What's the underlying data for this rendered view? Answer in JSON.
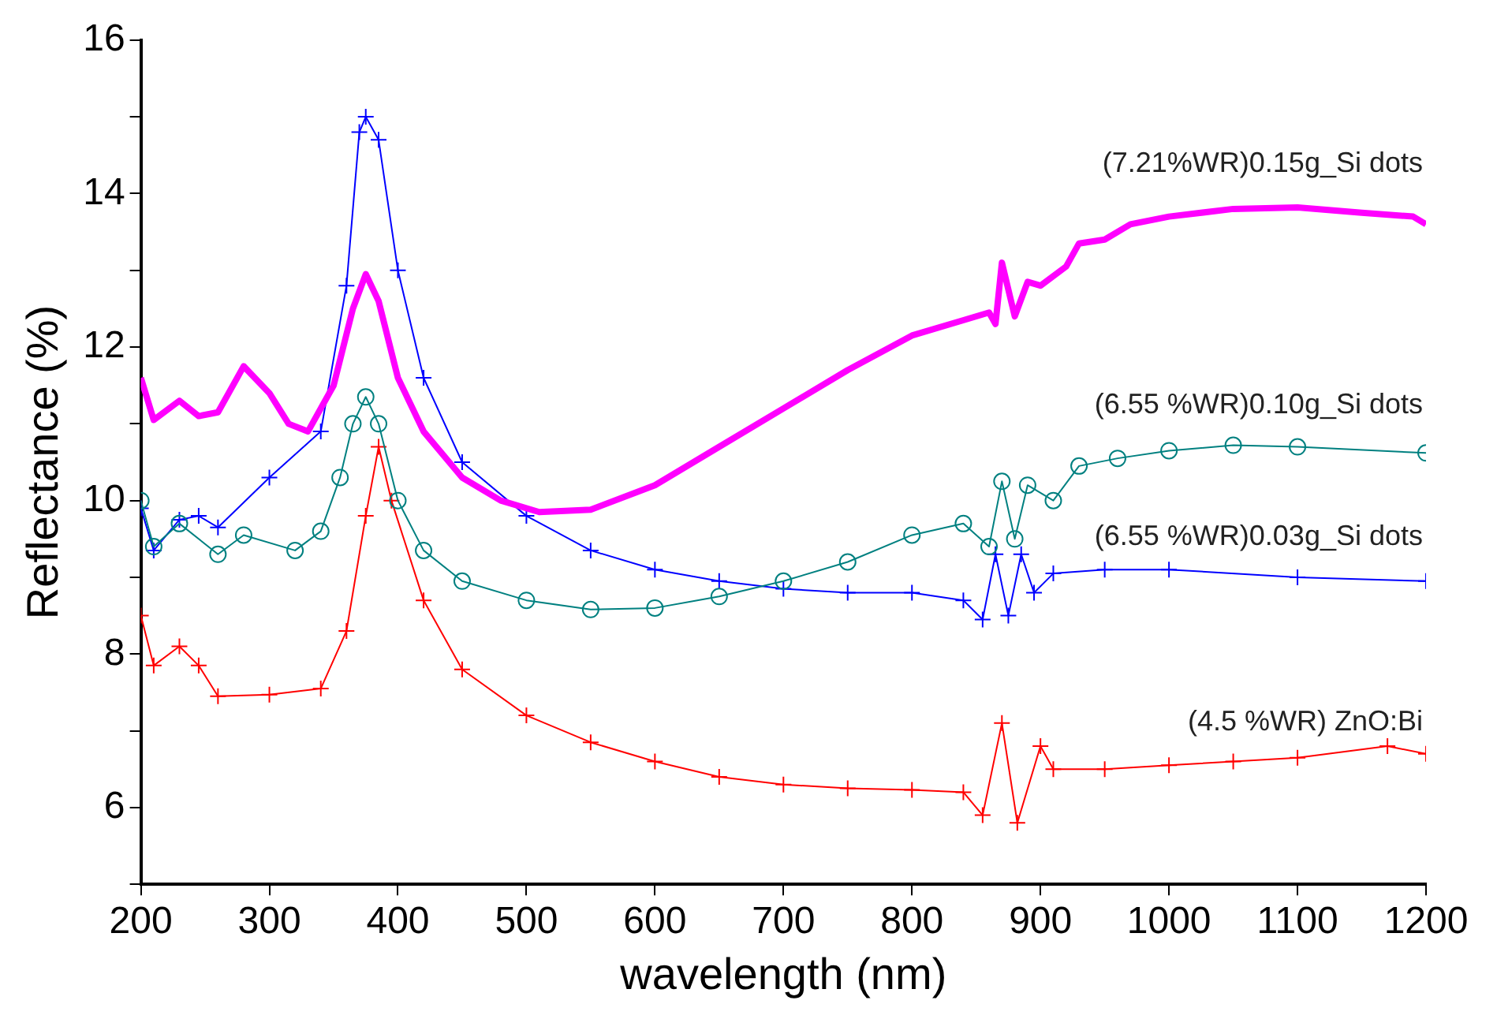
{
  "chart_data": {
    "type": "line",
    "xlabel": "wavelength (nm)",
    "ylabel": "Reflectance (%)",
    "xlim": [
      200,
      1200
    ],
    "xticks": [
      200,
      300,
      400,
      500,
      600,
      700,
      800,
      900,
      1000,
      1100,
      1200
    ],
    "ylim": [
      5,
      16
    ],
    "yticks": [
      {
        "value": 5,
        "label": null
      },
      6,
      {
        "value": 7,
        "label": null
      },
      8,
      {
        "value": 9,
        "label": null
      },
      10,
      {
        "value": 11,
        "label": null
      },
      12,
      {
        "value": 13,
        "label": null
      },
      14,
      {
        "value": 15,
        "label": null
      },
      16
    ],
    "grid": false,
    "legend": false,
    "series": [
      {
        "name": "(7.21%WR)0.15g_Si dots",
        "color": "#ff00ff",
        "marker": "none",
        "x": [
          200,
          210,
          230,
          245,
          260,
          280,
          300,
          315,
          330,
          350,
          365,
          375,
          385,
          400,
          420,
          450,
          480,
          510,
          550,
          600,
          650,
          700,
          750,
          800,
          840,
          860,
          865,
          870,
          880,
          890,
          900,
          920,
          930,
          950,
          970,
          1000,
          1050,
          1100,
          1150,
          1190,
          1200
        ],
        "values": [
          11.6,
          11.05,
          11.3,
          11.1,
          11.15,
          11.75,
          11.4,
          11.0,
          10.9,
          11.5,
          12.5,
          12.95,
          12.6,
          11.6,
          10.9,
          10.3,
          10.0,
          9.85,
          9.88,
          10.2,
          10.7,
          11.2,
          11.7,
          12.15,
          12.35,
          12.45,
          12.3,
          13.1,
          12.4,
          12.85,
          12.8,
          13.05,
          13.35,
          13.4,
          13.6,
          13.7,
          13.8,
          13.82,
          13.75,
          13.7,
          13.6
        ]
      },
      {
        "name": "(6.55 %WR)0.10g_Si dots",
        "color": "#008080",
        "marker": "circle",
        "x": [
          200,
          210,
          230,
          260,
          280,
          320,
          340,
          355,
          365,
          375,
          385,
          400,
          420,
          450,
          500,
          550,
          600,
          650,
          700,
          750,
          800,
          840,
          860,
          870,
          880,
          890,
          910,
          930,
          960,
          1000,
          1050,
          1100,
          1200
        ],
        "values": [
          10.0,
          9.4,
          9.7,
          9.3,
          9.55,
          9.35,
          9.6,
          10.3,
          11.0,
          11.35,
          11.0,
          10.0,
          9.35,
          8.95,
          8.7,
          8.58,
          8.6,
          8.75,
          8.95,
          9.2,
          9.55,
          9.7,
          9.4,
          10.25,
          9.5,
          10.2,
          10.0,
          10.45,
          10.55,
          10.65,
          10.72,
          10.7,
          10.62
        ]
      },
      {
        "name": "(6.55 %WR)0.03g_Si dots",
        "color": "#0000ff",
        "marker": "cross",
        "x": [
          200,
          210,
          230,
          245,
          260,
          300,
          340,
          360,
          370,
          375,
          385,
          400,
          420,
          450,
          500,
          550,
          600,
          650,
          700,
          750,
          800,
          840,
          855,
          865,
          875,
          885,
          895,
          910,
          950,
          1000,
          1100,
          1200
        ],
        "values": [
          9.9,
          9.35,
          9.75,
          9.8,
          9.65,
          10.3,
          10.9,
          12.8,
          14.8,
          15.0,
          14.7,
          13.0,
          11.6,
          10.5,
          9.8,
          9.35,
          9.1,
          8.95,
          8.85,
          8.8,
          8.8,
          8.7,
          8.45,
          9.3,
          8.5,
          9.3,
          8.8,
          9.05,
          9.1,
          9.1,
          9.0,
          8.95
        ]
      },
      {
        "name": "(4.5 %WR) ZnO:Bi",
        "color": "#ff0000",
        "marker": "cross",
        "x": [
          200,
          210,
          230,
          245,
          260,
          300,
          340,
          360,
          375,
          385,
          395,
          420,
          450,
          500,
          550,
          600,
          650,
          700,
          750,
          800,
          840,
          855,
          870,
          882,
          900,
          910,
          950,
          1000,
          1050,
          1100,
          1170,
          1200
        ],
        "values": [
          8.5,
          7.85,
          8.1,
          7.85,
          7.45,
          7.47,
          7.55,
          8.3,
          9.8,
          10.7,
          10.0,
          8.7,
          7.8,
          7.2,
          6.85,
          6.6,
          6.4,
          6.3,
          6.25,
          6.23,
          6.2,
          5.9,
          7.1,
          5.8,
          6.8,
          6.5,
          6.5,
          6.55,
          6.6,
          6.65,
          6.8,
          6.7
        ]
      }
    ]
  }
}
